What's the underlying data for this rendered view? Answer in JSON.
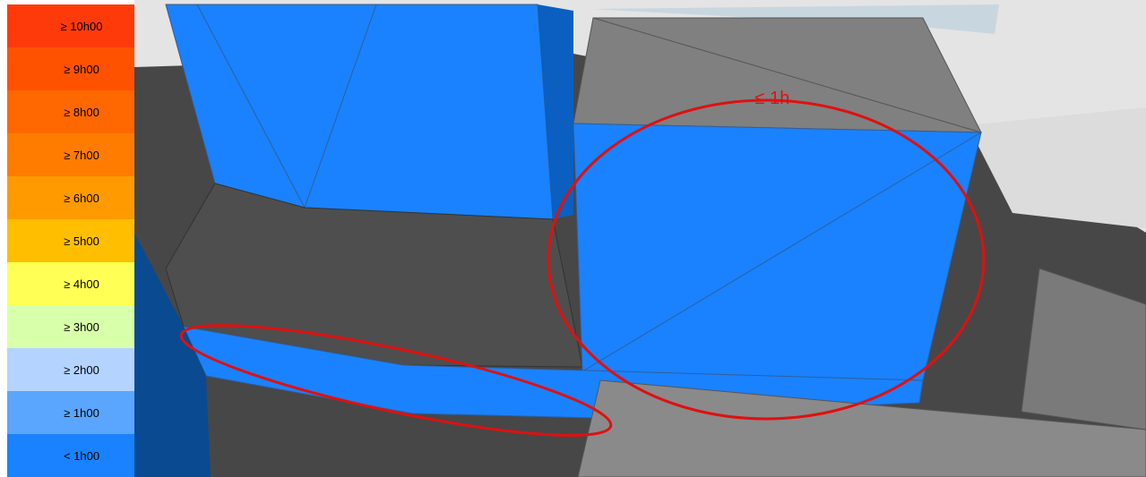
{
  "legend": {
    "items": [
      {
        "label": "≥ 10h00",
        "color": "#ff3a0a"
      },
      {
        "label": "≥ 9h00",
        "color": "#ff5200"
      },
      {
        "label": "≥ 8h00",
        "color": "#ff6700"
      },
      {
        "label": "≥ 7h00",
        "color": "#ff7c00"
      },
      {
        "label": "≥ 6h00",
        "color": "#ff9a00"
      },
      {
        "label": "≥ 5h00",
        "color": "#ffbe00"
      },
      {
        "label": "≥ 4h00",
        "color": "#ffff55"
      },
      {
        "label": "≥ 3h00",
        "color": "#d8ffaa"
      },
      {
        "label": "≥ 2h00",
        "color": "#b4d4ff"
      },
      {
        "label": "≥ 1h00",
        "color": "#5aa6ff"
      },
      {
        "label": "< 1h00",
        "color": "#1a82ff"
      }
    ]
  },
  "annotation": "≤ 1h"
}
